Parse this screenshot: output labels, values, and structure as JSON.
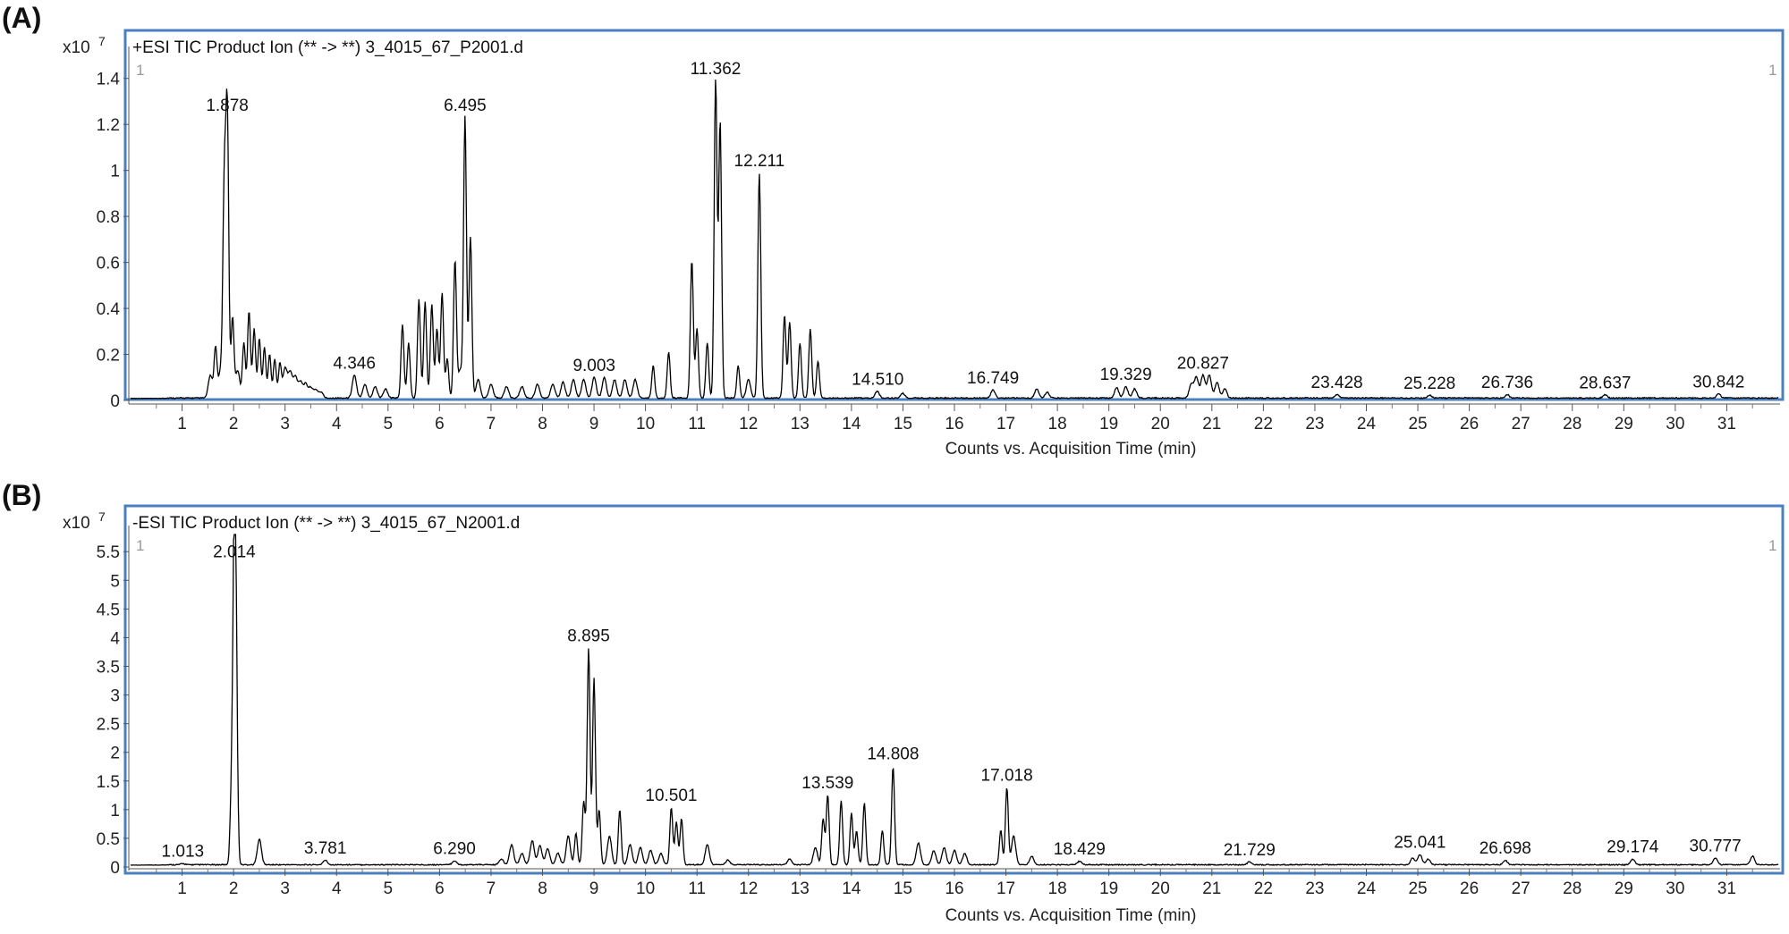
{
  "chart_data": [
    {
      "type": "line",
      "panel_label": "(A)",
      "title": "+ESI TIC Product Ion (** -> **) 3_4015_67_P2001.d",
      "xlabel": "Counts vs. Acquisition Time (min)",
      "ylabel_multiplier": "x10",
      "ylabel_exponent": "7",
      "corner_marker": "1",
      "xlim": [
        0,
        32
      ],
      "ylim": [
        0,
        1.5
      ],
      "yticks": [
        "0",
        "0.2",
        "0.4",
        "0.6",
        "0.8",
        "1",
        "1.2",
        "1.4"
      ],
      "xticks": [
        "1",
        "2",
        "3",
        "4",
        "5",
        "6",
        "7",
        "8",
        "9",
        "10",
        "11",
        "12",
        "13",
        "14",
        "15",
        "16",
        "17",
        "18",
        "19",
        "20",
        "21",
        "22",
        "23",
        "24",
        "25",
        "26",
        "27",
        "28",
        "29",
        "30",
        "31"
      ],
      "baseline": 0.008,
      "peaks": [
        [
          1.55,
          0.1
        ],
        [
          1.65,
          0.22
        ],
        [
          1.75,
          0.12
        ],
        [
          1.82,
          0.88
        ],
        [
          1.878,
          1.22
        ],
        [
          1.98,
          0.35
        ],
        [
          2.08,
          0.12
        ],
        [
          2.2,
          0.24
        ],
        [
          2.3,
          0.38
        ],
        [
          2.4,
          0.3
        ],
        [
          2.5,
          0.26
        ],
        [
          2.6,
          0.22
        ],
        [
          2.7,
          0.19
        ],
        [
          2.8,
          0.17
        ],
        [
          2.9,
          0.15
        ],
        [
          3.0,
          0.13
        ],
        [
          3.1,
          0.11
        ],
        [
          3.2,
          0.09
        ],
        [
          3.3,
          0.07
        ],
        [
          3.4,
          0.06
        ],
        [
          3.5,
          0.045
        ],
        [
          3.6,
          0.035
        ],
        [
          3.7,
          0.025
        ],
        [
          4.346,
          0.1
        ],
        [
          4.55,
          0.06
        ],
        [
          4.75,
          0.05
        ],
        [
          4.95,
          0.04
        ],
        [
          5.28,
          0.32
        ],
        [
          5.4,
          0.24
        ],
        [
          5.6,
          0.43
        ],
        [
          5.72,
          0.42
        ],
        [
          5.85,
          0.41
        ],
        [
          5.95,
          0.3
        ],
        [
          6.05,
          0.46
        ],
        [
          6.15,
          0.17
        ],
        [
          6.3,
          0.6
        ],
        [
          6.4,
          0.12
        ],
        [
          6.495,
          1.22
        ],
        [
          6.6,
          0.7
        ],
        [
          6.75,
          0.08
        ],
        [
          7.0,
          0.06
        ],
        [
          7.3,
          0.05
        ],
        [
          7.6,
          0.05
        ],
        [
          7.9,
          0.06
        ],
        [
          8.2,
          0.06
        ],
        [
          8.4,
          0.07
        ],
        [
          8.6,
          0.08
        ],
        [
          8.8,
          0.08
        ],
        [
          9.003,
          0.09
        ],
        [
          9.2,
          0.09
        ],
        [
          9.4,
          0.08
        ],
        [
          9.6,
          0.08
        ],
        [
          9.8,
          0.08
        ],
        [
          10.15,
          0.14
        ],
        [
          10.45,
          0.2
        ],
        [
          10.9,
          0.6
        ],
        [
          11.0,
          0.3
        ],
        [
          11.2,
          0.24
        ],
        [
          11.362,
          1.38
        ],
        [
          11.45,
          1.2
        ],
        [
          11.8,
          0.14
        ],
        [
          12.0,
          0.08
        ],
        [
          12.211,
          0.98
        ],
        [
          12.7,
          0.36
        ],
        [
          12.8,
          0.33
        ],
        [
          13.0,
          0.24
        ],
        [
          13.2,
          0.3
        ],
        [
          13.35,
          0.16
        ],
        [
          14.5,
          0.03
        ],
        [
          15.0,
          0.02
        ],
        [
          16.749,
          0.035
        ],
        [
          17.6,
          0.04
        ],
        [
          17.8,
          0.025
        ],
        [
          19.15,
          0.045
        ],
        [
          19.329,
          0.05
        ],
        [
          19.5,
          0.04
        ],
        [
          20.6,
          0.06
        ],
        [
          20.7,
          0.09
        ],
        [
          20.827,
          0.1
        ],
        [
          20.95,
          0.1
        ],
        [
          21.1,
          0.07
        ],
        [
          21.25,
          0.04
        ],
        [
          23.428,
          0.015
        ],
        [
          25.228,
          0.012
        ],
        [
          26.736,
          0.015
        ],
        [
          28.637,
          0.014
        ],
        [
          30.842,
          0.018
        ]
      ],
      "annotations": [
        {
          "x": 1.878,
          "y": 1.22,
          "label": "1.878"
        },
        {
          "x": 4.346,
          "y": 0.1,
          "label": "4.346"
        },
        {
          "x": 6.495,
          "y": 1.22,
          "label": "6.495"
        },
        {
          "x": 9.003,
          "y": 0.09,
          "label": "9.003"
        },
        {
          "x": 11.362,
          "y": 1.38,
          "label": "11.362"
        },
        {
          "x": 12.211,
          "y": 0.98,
          "label": "12.211"
        },
        {
          "x": 14.51,
          "y": 0.03,
          "label": "14.510"
        },
        {
          "x": 16.749,
          "y": 0.035,
          "label": "16.749"
        },
        {
          "x": 19.329,
          "y": 0.05,
          "label": "19.329"
        },
        {
          "x": 20.827,
          "y": 0.1,
          "label": "20.827"
        },
        {
          "x": 23.428,
          "y": 0.015,
          "label": "23.428"
        },
        {
          "x": 25.228,
          "y": 0.012,
          "label": "25.228"
        },
        {
          "x": 26.736,
          "y": 0.015,
          "label": "26.736"
        },
        {
          "x": 28.637,
          "y": 0.014,
          "label": "28.637"
        },
        {
          "x": 30.842,
          "y": 0.018,
          "label": "30.842"
        }
      ],
      "frame_color": "#4a7fc1",
      "trace_color": "#000000"
    },
    {
      "type": "line",
      "panel_label": "(B)",
      "title": "-ESI TIC Product Ion (** -> **) 3_4015_67_N2001.d",
      "xlabel": "Counts vs. Acquisition Time (min)",
      "ylabel_multiplier": "x10",
      "ylabel_exponent": "7",
      "corner_marker": "1",
      "xlim": [
        0,
        32
      ],
      "ylim": [
        0,
        5.8
      ],
      "yticks": [
        "0",
        "0.5",
        "1",
        "1.5",
        "2",
        "2.5",
        "3",
        "3.5",
        "4",
        "4.5",
        "5",
        "5.5"
      ],
      "xticks": [
        "1",
        "2",
        "3",
        "4",
        "5",
        "6",
        "7",
        "8",
        "9",
        "10",
        "11",
        "12",
        "13",
        "14",
        "15",
        "16",
        "17",
        "18",
        "19",
        "20",
        "21",
        "22",
        "23",
        "24",
        "25",
        "26",
        "27",
        "28",
        "29",
        "30",
        "31"
      ],
      "baseline": 0.03,
      "peaks": [
        [
          1.013,
          0.02
        ],
        [
          1.96,
          1.2
        ],
        [
          2.014,
          5.25
        ],
        [
          2.05,
          2.9
        ],
        [
          2.5,
          0.45
        ],
        [
          3.781,
          0.08
        ],
        [
          6.29,
          0.07
        ],
        [
          7.2,
          0.1
        ],
        [
          7.4,
          0.35
        ],
        [
          7.6,
          0.2
        ],
        [
          7.8,
          0.42
        ],
        [
          7.95,
          0.33
        ],
        [
          8.1,
          0.28
        ],
        [
          8.3,
          0.2
        ],
        [
          8.5,
          0.5
        ],
        [
          8.65,
          0.55
        ],
        [
          8.8,
          1.1
        ],
        [
          8.895,
          3.78
        ],
        [
          9.0,
          3.25
        ],
        [
          9.1,
          0.95
        ],
        [
          9.3,
          0.5
        ],
        [
          9.5,
          0.95
        ],
        [
          9.7,
          0.35
        ],
        [
          9.9,
          0.3
        ],
        [
          10.1,
          0.25
        ],
        [
          10.3,
          0.2
        ],
        [
          10.501,
          1.0
        ],
        [
          10.6,
          0.75
        ],
        [
          10.7,
          0.8
        ],
        [
          11.2,
          0.35
        ],
        [
          11.6,
          0.08
        ],
        [
          12.8,
          0.1
        ],
        [
          13.3,
          0.3
        ],
        [
          13.45,
          0.8
        ],
        [
          13.539,
          1.22
        ],
        [
          13.8,
          1.12
        ],
        [
          14.0,
          0.9
        ],
        [
          14.1,
          0.58
        ],
        [
          14.25,
          1.08
        ],
        [
          14.6,
          0.6
        ],
        [
          14.808,
          1.72
        ],
        [
          15.3,
          0.38
        ],
        [
          15.6,
          0.25
        ],
        [
          15.8,
          0.3
        ],
        [
          16.0,
          0.25
        ],
        [
          16.2,
          0.2
        ],
        [
          16.9,
          0.6
        ],
        [
          17.018,
          1.35
        ],
        [
          17.15,
          0.5
        ],
        [
          17.5,
          0.15
        ],
        [
          18.429,
          0.06
        ],
        [
          21.729,
          0.05
        ],
        [
          24.9,
          0.12
        ],
        [
          25.041,
          0.18
        ],
        [
          25.2,
          0.1
        ],
        [
          26.698,
          0.08
        ],
        [
          29.174,
          0.1
        ],
        [
          30.777,
          0.12
        ],
        [
          31.5,
          0.15
        ]
      ],
      "annotations": [
        {
          "x": 1.013,
          "y": 0.02,
          "label": "1.013"
        },
        {
          "x": 2.014,
          "y": 5.25,
          "label": "2.014"
        },
        {
          "x": 3.781,
          "y": 0.08,
          "label": "3.781"
        },
        {
          "x": 6.29,
          "y": 0.07,
          "label": "6.290"
        },
        {
          "x": 8.895,
          "y": 3.78,
          "label": "8.895"
        },
        {
          "x": 10.501,
          "y": 1.0,
          "label": "10.501"
        },
        {
          "x": 13.539,
          "y": 1.22,
          "label": "13.539"
        },
        {
          "x": 14.808,
          "y": 1.72,
          "label": "14.808"
        },
        {
          "x": 17.018,
          "y": 1.35,
          "label": "17.018"
        },
        {
          "x": 18.429,
          "y": 0.06,
          "label": "18.429"
        },
        {
          "x": 21.729,
          "y": 0.05,
          "label": "21.729"
        },
        {
          "x": 25.041,
          "y": 0.18,
          "label": "25.041"
        },
        {
          "x": 26.698,
          "y": 0.08,
          "label": "26.698"
        },
        {
          "x": 29.174,
          "y": 0.1,
          "label": "29.174"
        },
        {
          "x": 30.777,
          "y": 0.12,
          "label": "30.777"
        }
      ],
      "frame_color": "#4a7fc1",
      "trace_color": "#000000"
    }
  ]
}
